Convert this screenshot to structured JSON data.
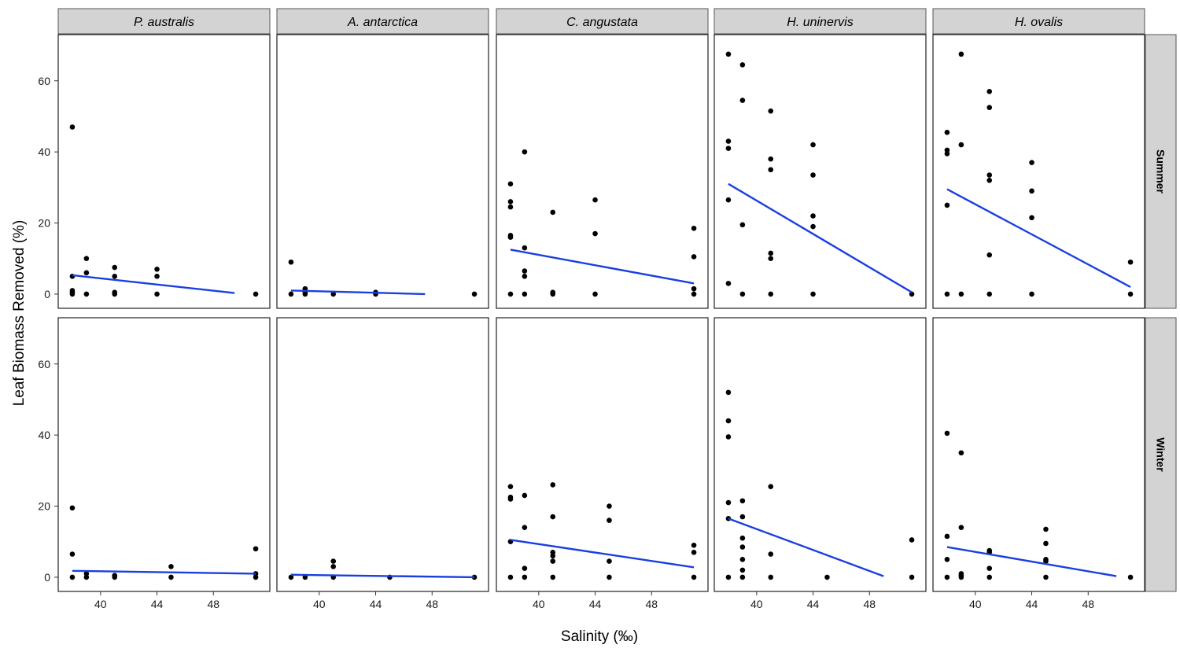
{
  "chart_data": {
    "type": "scatter",
    "xlabel": "Salinity (‰)",
    "ylabel": "Leaf Biomass Removed (%)",
    "xlim": [
      37,
      52
    ],
    "ylim": [
      -4,
      73
    ],
    "x_ticks": [
      40,
      44,
      48
    ],
    "y_ticks": [
      0,
      20,
      40,
      60
    ],
    "grid": false,
    "facet_columns": [
      "P. australis",
      "A. antarctica",
      "C. angustata",
      "H. uninervis",
      "H. ovalis"
    ],
    "facet_rows": [
      "Summer",
      "Winter"
    ],
    "colors": {
      "points": "#000000",
      "trend_line": "#1a3fe0",
      "strip_fill": "#d3d3d3"
    },
    "panels": [
      {
        "column": "P. australis",
        "row": "Summer",
        "points": [
          [
            38,
            47
          ],
          [
            38,
            5
          ],
          [
            38,
            1
          ],
          [
            38,
            0.5
          ],
          [
            38,
            0
          ],
          [
            39,
            10
          ],
          [
            39,
            6
          ],
          [
            39,
            0
          ],
          [
            41,
            7.5
          ],
          [
            41,
            5
          ],
          [
            41,
            0.5
          ],
          [
            41,
            0
          ],
          [
            44,
            7
          ],
          [
            44,
            5
          ],
          [
            44,
            0
          ],
          [
            51,
            0
          ]
        ],
        "trend": [
          [
            38,
            5.3
          ],
          [
            49.5,
            0.3
          ]
        ]
      },
      {
        "column": "A. antarctica",
        "row": "Summer",
        "points": [
          [
            38,
            9
          ],
          [
            38,
            0
          ],
          [
            39,
            1.5
          ],
          [
            39,
            0.5
          ],
          [
            39,
            0
          ],
          [
            41,
            0
          ],
          [
            44,
            0.5
          ],
          [
            44,
            0
          ],
          [
            51,
            0
          ]
        ],
        "trend": [
          [
            38,
            1
          ],
          [
            47.5,
            0
          ]
        ]
      },
      {
        "column": "C. angustata",
        "row": "Summer",
        "points": [
          [
            38,
            31
          ],
          [
            38,
            26
          ],
          [
            38,
            24.5
          ],
          [
            38,
            16.5
          ],
          [
            38,
            16
          ],
          [
            38,
            0
          ],
          [
            39,
            40
          ],
          [
            39,
            13
          ],
          [
            39,
            6.5
          ],
          [
            39,
            5
          ],
          [
            39,
            0
          ],
          [
            41,
            23
          ],
          [
            41,
            0.5
          ],
          [
            41,
            0
          ],
          [
            44,
            26.5
          ],
          [
            44,
            17
          ],
          [
            44,
            0
          ],
          [
            51,
            18.5
          ],
          [
            51,
            10.5
          ],
          [
            51,
            1.5
          ],
          [
            51,
            0
          ]
        ],
        "trend": [
          [
            38,
            12.5
          ],
          [
            51,
            3
          ]
        ]
      },
      {
        "column": "H. uninervis",
        "row": "Summer",
        "points": [
          [
            38,
            67.5
          ],
          [
            38,
            43
          ],
          [
            38,
            41
          ],
          [
            38,
            26.5
          ],
          [
            38,
            3
          ],
          [
            39,
            64.5
          ],
          [
            39,
            54.5
          ],
          [
            39,
            19.5
          ],
          [
            39,
            0
          ],
          [
            41,
            51.5
          ],
          [
            41,
            38
          ],
          [
            41,
            35
          ],
          [
            41,
            11.5
          ],
          [
            41,
            10
          ],
          [
            41,
            0
          ],
          [
            44,
            42
          ],
          [
            44,
            33.5
          ],
          [
            44,
            22
          ],
          [
            44,
            19
          ],
          [
            44,
            0
          ],
          [
            51,
            0
          ]
        ],
        "trend": [
          [
            38,
            31
          ],
          [
            51,
            0.5
          ]
        ]
      },
      {
        "column": "H. ovalis",
        "row": "Summer",
        "points": [
          [
            38,
            45.5
          ],
          [
            38,
            40.5
          ],
          [
            38,
            39.5
          ],
          [
            38,
            25
          ],
          [
            38,
            0
          ],
          [
            39,
            67.5
          ],
          [
            39,
            42
          ],
          [
            39,
            0
          ],
          [
            41,
            57
          ],
          [
            41,
            52.5
          ],
          [
            41,
            33.5
          ],
          [
            41,
            32
          ],
          [
            41,
            11
          ],
          [
            41,
            0
          ],
          [
            44,
            37
          ],
          [
            44,
            29
          ],
          [
            44,
            21.5
          ],
          [
            44,
            0
          ],
          [
            51,
            9
          ],
          [
            51,
            0
          ]
        ],
        "trend": [
          [
            38,
            29.5
          ],
          [
            51,
            2
          ]
        ]
      },
      {
        "column": "P. australis",
        "row": "Winter",
        "points": [
          [
            38,
            19.5
          ],
          [
            38,
            6.5
          ],
          [
            38,
            0
          ],
          [
            39,
            1
          ],
          [
            39,
            0
          ],
          [
            41,
            0.5
          ],
          [
            41,
            0
          ],
          [
            45,
            3
          ],
          [
            45,
            0
          ],
          [
            51,
            8
          ],
          [
            51,
            1
          ],
          [
            51,
            0
          ]
        ],
        "trend": [
          [
            38,
            1.8
          ],
          [
            51,
            1
          ]
        ]
      },
      {
        "column": "A. antarctica",
        "row": "Winter",
        "points": [
          [
            38,
            0
          ],
          [
            39,
            0
          ],
          [
            41,
            4.5
          ],
          [
            41,
            3
          ],
          [
            41,
            0
          ],
          [
            45,
            0
          ],
          [
            51,
            0
          ]
        ],
        "trend": [
          [
            38,
            0.7
          ],
          [
            51,
            0
          ]
        ]
      },
      {
        "column": "C. angustata",
        "row": "Winter",
        "points": [
          [
            38,
            25.5
          ],
          [
            38,
            22.5
          ],
          [
            38,
            22
          ],
          [
            38,
            10
          ],
          [
            38,
            0
          ],
          [
            39,
            23
          ],
          [
            39,
            14
          ],
          [
            39,
            2.5
          ],
          [
            39,
            0
          ],
          [
            41,
            26
          ],
          [
            41,
            17
          ],
          [
            41,
            7
          ],
          [
            41,
            6
          ],
          [
            41,
            4.5
          ],
          [
            41,
            0
          ],
          [
            45,
            20
          ],
          [
            45,
            16
          ],
          [
            45,
            4.5
          ],
          [
            45,
            0
          ],
          [
            51,
            9
          ],
          [
            51,
            7
          ],
          [
            51,
            0
          ]
        ],
        "trend": [
          [
            38,
            10.5
          ],
          [
            51,
            2.8
          ]
        ]
      },
      {
        "column": "H. uninervis",
        "row": "Winter",
        "points": [
          [
            38,
            52
          ],
          [
            38,
            44
          ],
          [
            38,
            39.5
          ],
          [
            38,
            21
          ],
          [
            38,
            16.5
          ],
          [
            38,
            0
          ],
          [
            39,
            21.5
          ],
          [
            39,
            17
          ],
          [
            39,
            11
          ],
          [
            39,
            8.5
          ],
          [
            39,
            5
          ],
          [
            39,
            2
          ],
          [
            39,
            0
          ],
          [
            41,
            25.5
          ],
          [
            41,
            6.5
          ],
          [
            41,
            0
          ],
          [
            45,
            0
          ],
          [
            51,
            10.5
          ],
          [
            51,
            0
          ]
        ],
        "trend": [
          [
            38,
            16.5
          ],
          [
            49,
            0.3
          ]
        ]
      },
      {
        "column": "H. ovalis",
        "row": "Winter",
        "points": [
          [
            38,
            40.5
          ],
          [
            38,
            11.5
          ],
          [
            38,
            5
          ],
          [
            38,
            0
          ],
          [
            39,
            35
          ],
          [
            39,
            14
          ],
          [
            39,
            1
          ],
          [
            39,
            0.5
          ],
          [
            39,
            0
          ],
          [
            41,
            7.5
          ],
          [
            41,
            7
          ],
          [
            41,
            2.5
          ],
          [
            41,
            0
          ],
          [
            45,
            13.5
          ],
          [
            45,
            9.5
          ],
          [
            45,
            5
          ],
          [
            45,
            4.5
          ],
          [
            45,
            0
          ],
          [
            51,
            0
          ]
        ],
        "trend": [
          [
            38,
            8.5
          ],
          [
            50,
            0.3
          ]
        ]
      }
    ]
  }
}
